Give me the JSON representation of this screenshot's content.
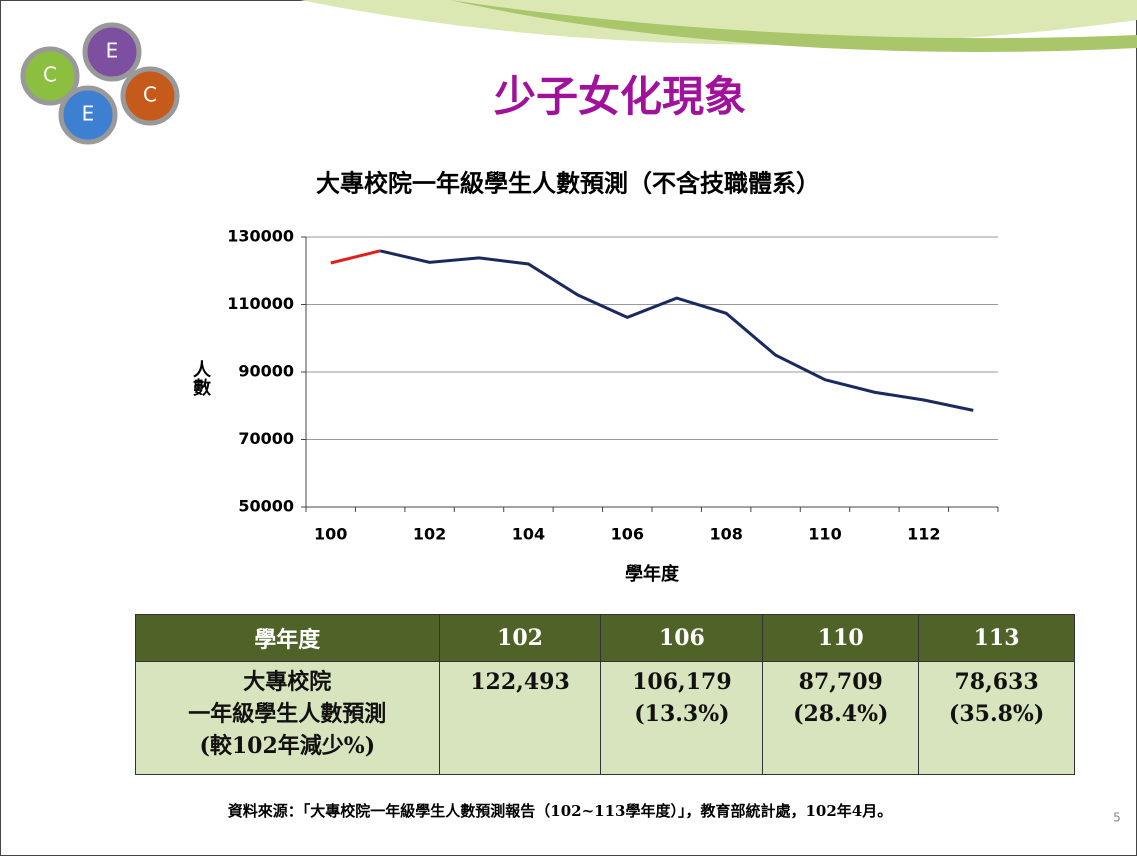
{
  "slide": {
    "title": "少子女化現象",
    "logo": [
      "C",
      "E",
      "C",
      "E"
    ],
    "page_number": "5",
    "source": "資料來源：「大專校院一年級學生人數預測報告（102~113學年度）」，教育部統計處，102年4月。"
  },
  "chart_data": {
    "type": "line",
    "title": "大專校院一年級學生人數預測（不含技職體系）",
    "x_label": "學年度",
    "y_label": "人數",
    "categories": [
      "100",
      null,
      "102",
      null,
      "104",
      null,
      "106",
      null,
      "108",
      null,
      "110",
      null,
      "112",
      null
    ],
    "series": [
      {
        "color": "#e02020",
        "values": [
          122300,
          125900,
          null,
          null,
          null,
          null,
          null,
          null,
          null,
          null,
          null,
          null,
          null,
          null
        ]
      },
      {
        "color": "#1a2a5e",
        "values": [
          null,
          125900,
          122493,
          123800,
          122000,
          112800,
          106179,
          111900,
          107400,
          95000,
          87709,
          84000,
          81700,
          78633
        ]
      }
    ],
    "ylim": [
      50000,
      130000
    ],
    "yticks": [
      50000,
      70000,
      90000,
      110000,
      130000
    ],
    "grid": true
  },
  "table": {
    "header": [
      "學年度",
      "102",
      "106",
      "110",
      "113"
    ],
    "rows": [
      [
        [
          "大專校院",
          "一年級學生人數預測",
          "(較102年減少%)"
        ],
        [
          "122,493"
        ],
        [
          "106,179",
          "(13.3%)"
        ],
        [
          "87,709",
          "(28.4%)"
        ],
        [
          "78,633",
          "(35.8%)"
        ]
      ]
    ]
  }
}
